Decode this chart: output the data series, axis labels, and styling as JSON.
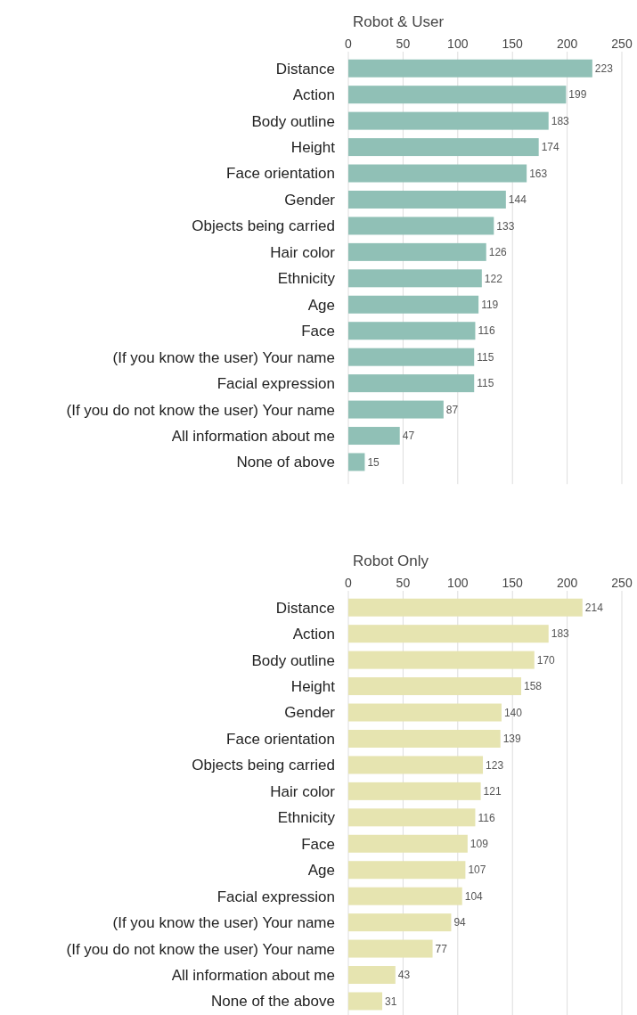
{
  "chart_data": [
    {
      "type": "bar",
      "orientation": "horizontal",
      "title": "Robot & User",
      "categories": [
        "Distance",
        "Action",
        "Body outline",
        "Height",
        "Face orientation",
        "Gender",
        "Objects being carried",
        "Hair color",
        "Ethnicity",
        "Age",
        "Face",
        "(If you know the user) Your name",
        "Facial expression",
        "(If you do not know the user) Your name",
        "All information about me",
        "None of above"
      ],
      "values": [
        223,
        199,
        183,
        174,
        163,
        144,
        133,
        126,
        122,
        119,
        116,
        115,
        115,
        87,
        47,
        15
      ],
      "color": "#90c0b6",
      "xlim": [
        0,
        250
      ],
      "xticks": [
        0,
        50,
        100,
        150,
        200,
        250
      ],
      "grid": "x",
      "data_labels": true
    },
    {
      "type": "bar",
      "orientation": "horizontal",
      "title": "Robot Only",
      "categories": [
        "Distance",
        "Action",
        "Body outline",
        "Height",
        "Gender",
        "Face orientation",
        "Objects being carried",
        "Hair color",
        "Ethnicity",
        "Face",
        "Age",
        "Facial expression",
        "(If you know the user) Your name",
        "(If you do not know the user) Your name",
        "All information about me",
        "None of the above"
      ],
      "values": [
        214,
        183,
        170,
        158,
        140,
        139,
        123,
        121,
        116,
        109,
        107,
        104,
        94,
        77,
        43,
        31
      ],
      "color": "#e6e4b0",
      "xlim": [
        0,
        250
      ],
      "xticks": [
        0,
        50,
        100,
        150,
        200,
        250
      ],
      "grid": "x",
      "data_labels": true
    }
  ]
}
